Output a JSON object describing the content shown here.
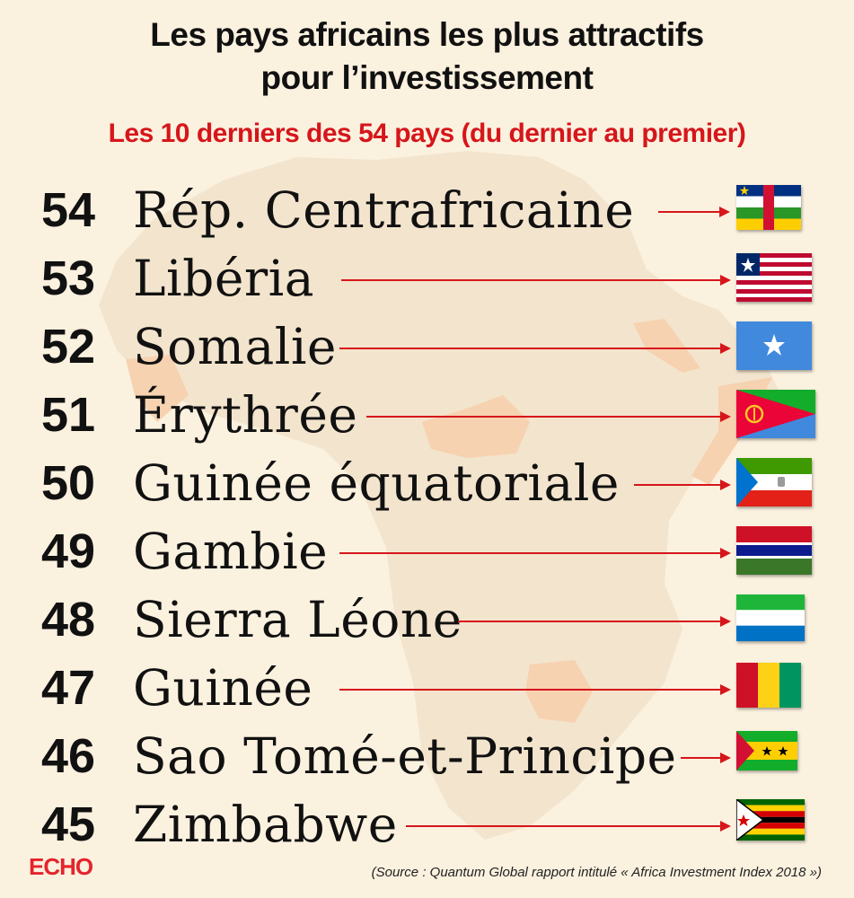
{
  "header": {
    "title_line1": "Les pays africains les plus attractifs",
    "title_line2": "pour l’investissement",
    "subtitle": "Les 10 derniers des 54 pays (du dernier au premier)"
  },
  "countries": [
    {
      "rank": "54",
      "name": "Rép.  Centrafricaine",
      "flag": "central-african-republic-flag"
    },
    {
      "rank": "53",
      "name": "Libéria",
      "flag": "liberia-flag"
    },
    {
      "rank": "52",
      "name": "Somalie",
      "flag": "somalia-flag"
    },
    {
      "rank": "51",
      "name": "Érythrée",
      "flag": "eritrea-flag"
    },
    {
      "rank": "50",
      "name": "Guinée équatoriale",
      "flag": "equatorial-guinea-flag"
    },
    {
      "rank": "49",
      "name": "Gambie",
      "flag": "gambia-flag"
    },
    {
      "rank": "48",
      "name": "Sierra Léone",
      "flag": "sierra-leone-flag"
    },
    {
      "rank": "47",
      "name": "Guinée",
      "flag": "guinea-flag"
    },
    {
      "rank": "46",
      "name": "Sao Tomé-et-Principe",
      "flag": "sao-tome-and-principe-flag"
    },
    {
      "rank": "45",
      "name": "Zimbabwe",
      "flag": "zimbabwe-flag"
    }
  ],
  "footer": {
    "logo": "ECHO",
    "source": "(Source : Quantum Global rapport intitulé « Africa Investment Index 2018 »)"
  },
  "colors": {
    "background": "#fbf1df",
    "map": "#f3e4cd",
    "highlight": "#f6d2b0",
    "accent": "#d6161b"
  }
}
